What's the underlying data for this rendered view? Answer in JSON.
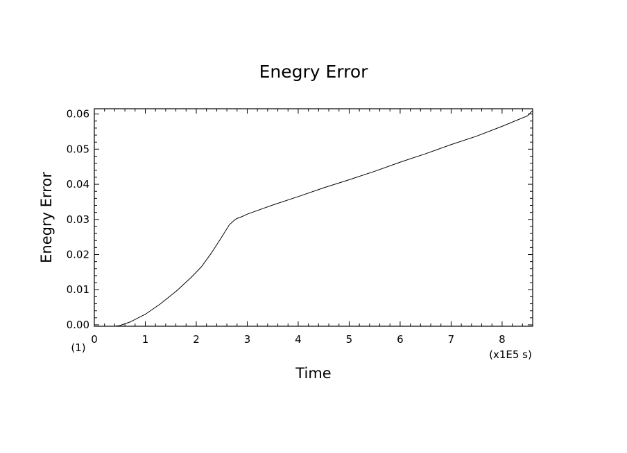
{
  "chart_data": {
    "type": "line",
    "title": "Enegry Error",
    "xlabel": "Time",
    "ylabel": "Enegry Error",
    "x_unit_label": "(x1E5 s)",
    "y_origin_label": "(1)",
    "xlim": [
      0,
      8.6
    ],
    "ylim": [
      -0.0004,
      0.0615
    ],
    "grid": false,
    "x_ticks": [
      0,
      1,
      2,
      3,
      4,
      5,
      6,
      7,
      8
    ],
    "x_tick_labels": [
      "0",
      "1",
      "2",
      "3",
      "4",
      "5",
      "6",
      "7",
      "8"
    ],
    "y_ticks": [
      0.0,
      0.01,
      0.02,
      0.03,
      0.04,
      0.05,
      0.06
    ],
    "y_tick_labels": [
      "0.00",
      "0.01",
      "0.02",
      "0.03",
      "0.04",
      "0.05",
      "0.06"
    ],
    "series": [
      {
        "color": "#000000",
        "x": [
          0,
          0.3,
          0.5,
          0.7,
          1.0,
          1.3,
          1.6,
          1.9,
          2.1,
          2.3,
          2.5,
          2.65,
          2.75,
          2.8,
          2.85,
          3.0,
          3.5,
          4.0,
          4.5,
          5.0,
          5.5,
          6.0,
          6.5,
          7.0,
          7.5,
          8.0,
          8.5,
          8.6
        ],
        "y": [
          -0.0004,
          -0.0006,
          -0.0002,
          0.0008,
          0.003,
          0.006,
          0.0095,
          0.0135,
          0.0165,
          0.0205,
          0.025,
          0.0285,
          0.0298,
          0.0303,
          0.0305,
          0.0315,
          0.0341,
          0.0365,
          0.039,
          0.0413,
          0.0437,
          0.0463,
          0.0487,
          0.0513,
          0.0537,
          0.0565,
          0.0595,
          0.061
        ]
      }
    ]
  }
}
